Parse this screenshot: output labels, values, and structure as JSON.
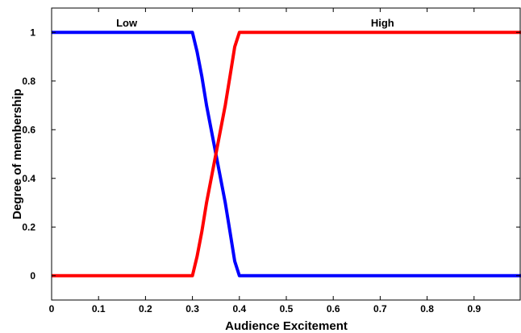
{
  "chart_data": {
    "type": "line",
    "title": "",
    "xlabel": "Audience Excitement",
    "ylabel": "Degree of membership",
    "xlim": [
      0,
      1
    ],
    "ylim": [
      -0.1,
      1.1
    ],
    "x_ticks": [
      "0",
      "0.1",
      "0.2",
      "0.3",
      "0.4",
      "0.5",
      "0.6",
      "0.7",
      "0.8",
      "0.9"
    ],
    "y_ticks": [
      "0",
      "0.2",
      "0.4",
      "0.6",
      "0.8",
      "1"
    ],
    "grid": false,
    "series": [
      {
        "name": "Low",
        "color": "#0000ff",
        "x": [
          0,
          0.3,
          0.31,
          0.32,
          0.33,
          0.34,
          0.35,
          0.36,
          0.37,
          0.38,
          0.39,
          0.4,
          1.0
        ],
        "y": [
          1,
          1,
          0.92,
          0.82,
          0.7,
          0.6,
          0.5,
          0.4,
          0.3,
          0.18,
          0.06,
          0,
          0
        ]
      },
      {
        "name": "High",
        "color": "#ff0000",
        "x": [
          0,
          0.3,
          0.31,
          0.32,
          0.33,
          0.34,
          0.35,
          0.36,
          0.37,
          0.38,
          0.39,
          0.4,
          1.0
        ],
        "y": [
          0,
          0,
          0.08,
          0.18,
          0.3,
          0.4,
          0.5,
          0.6,
          0.7,
          0.82,
          0.94,
          1,
          1
        ]
      }
    ],
    "series_labels": [
      {
        "text": "Low",
        "x": 0.16,
        "y": 1.04
      },
      {
        "text": "High",
        "x": 0.705,
        "y": 1.04
      }
    ]
  }
}
